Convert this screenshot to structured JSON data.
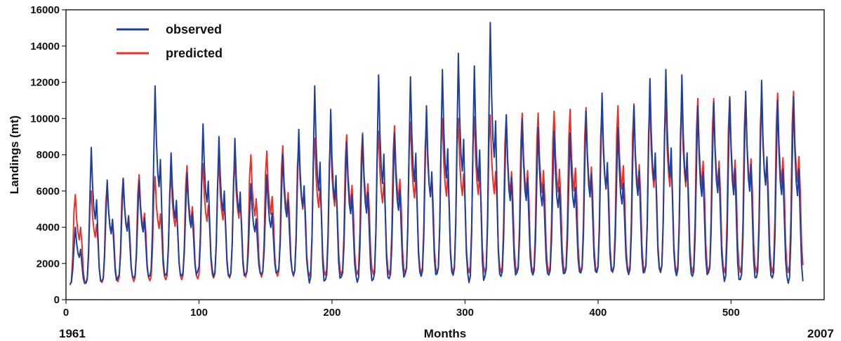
{
  "chart_data": {
    "type": "line",
    "title": "",
    "xlabel": "Months",
    "ylabel": "Landings (mt)",
    "xlim": [
      0,
      570
    ],
    "ylim": [
      0,
      16000
    ],
    "x_ticks": [
      0,
      100,
      200,
      300,
      400,
      500
    ],
    "y_ticks": [
      0,
      2000,
      4000,
      6000,
      8000,
      10000,
      12000,
      14000,
      16000
    ],
    "start_year_label": "1961",
    "end_year_label": "2007",
    "grid": false,
    "legend_position": "top-left",
    "months_per_cycle": 12,
    "series": [
      {
        "name": "observed",
        "color": "#1f3f9f",
        "annual_peaks": [
          4000,
          8400,
          6600,
          6700,
          6600,
          11800,
          8100,
          7000,
          9700,
          9000,
          8900,
          6400,
          6900,
          8000,
          9400,
          11800,
          10500,
          8700,
          9100,
          12400,
          9200,
          12300,
          10700,
          12700,
          13600,
          12900,
          15300,
          10200,
          10000,
          9500,
          9300,
          9200,
          10400,
          11400,
          9500,
          10700,
          12200,
          12700,
          12400,
          10700,
          10900,
          11200,
          11500,
          12100,
          11000,
          11200
        ],
        "annual_troughs": [
          800,
          800,
          900,
          1100,
          1100,
          1100,
          1200,
          1200,
          1400,
          1100,
          1100,
          1300,
          1300,
          1400,
          1200,
          700,
          900,
          1100,
          800,
          900,
          1000,
          1200,
          1100,
          1200,
          1100,
          700,
          1000,
          1100,
          1300,
          1200,
          1200,
          1300,
          1300,
          1300,
          1400,
          1200,
          1400,
          1300,
          1100,
          1100,
          1300,
          800,
          900,
          1000,
          1000,
          700
        ]
      },
      {
        "name": "predicted",
        "color": "#e8312a",
        "annual_peaks": [
          5800,
          6000,
          6400,
          6700,
          6900,
          6800,
          7000,
          7400,
          7500,
          7600,
          7800,
          8000,
          8200,
          8500,
          8700,
          8900,
          9000,
          9100,
          9200,
          9300,
          9600,
          9800,
          9900,
          10000,
          10000,
          10100,
          10200,
          10200,
          10300,
          10300,
          10400,
          10500,
          10600,
          10700,
          10700,
          10800,
          10900,
          11000,
          11000,
          11100,
          11100,
          11200,
          11300,
          11300,
          11400,
          11500
        ],
        "annual_troughs": [
          800,
          900,
          950,
          1000,
          1000,
          1050,
          1100,
          1100,
          1150,
          1200,
          1200,
          1250,
          1250,
          1300,
          1300,
          1300,
          1350,
          1350,
          1400,
          1400,
          1400,
          1450,
          1450,
          1450,
          1500,
          1500,
          1500,
          1500,
          1500,
          1500,
          1500,
          1500,
          1500,
          1500,
          1500,
          1500,
          1500,
          1500,
          1500,
          1500,
          1500,
          1500,
          1500,
          1500,
          1500,
          1500
        ]
      }
    ]
  }
}
